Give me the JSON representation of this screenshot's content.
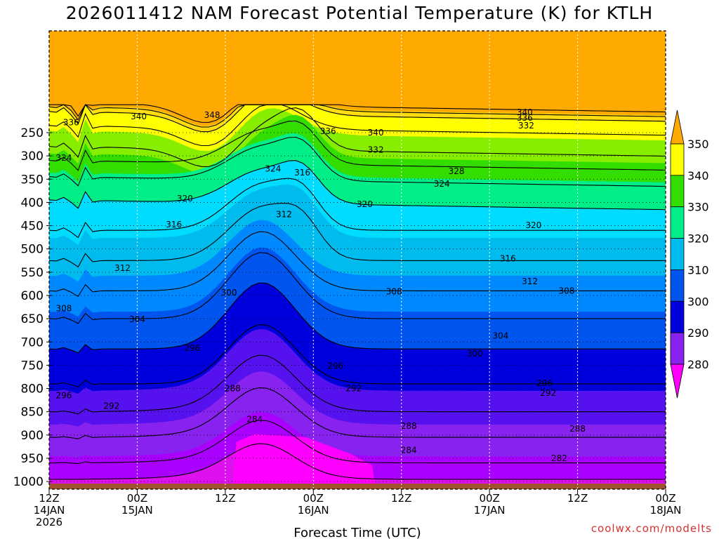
{
  "title": "2026011412 NAM Forecast Potential Temperature (K) for KTLH",
  "credit": "coolwx.com/modelts",
  "colors": {
    "band_lt280": "#ff00ff",
    "band_280": "#dd11ee",
    "band_285": "#aa00ff",
    "band_290": "#8822ee",
    "band_295": "#5511ee",
    "band_300": "#0000dd",
    "band_305": "#0055ee",
    "band_310": "#0088ff",
    "band_315": "#00bbee",
    "band_320": "#00dcff",
    "band_325": "#00ee88",
    "band_330": "#33dd00",
    "band_335": "#88ee00",
    "band_340": "#ffff00",
    "band_345": "#ffdd11",
    "band_350": "#ffaa00",
    "ground": "#a0522d"
  },
  "chart_data": {
    "type": "heatmap",
    "title": "2026011412 NAM Forecast Potential Temperature (K) for KTLH",
    "xlabel": "Forecast Time (UTC)",
    "ylabel": "",
    "x_ticks": [
      {
        "line1": "12Z",
        "line2": "14JAN",
        "line3": "2026"
      },
      {
        "line1": "00Z",
        "line2": "15JAN",
        "line3": ""
      },
      {
        "line1": "12Z",
        "line2": "",
        "line3": ""
      },
      {
        "line1": "00Z",
        "line2": "16JAN",
        "line3": ""
      },
      {
        "line1": "12Z",
        "line2": "",
        "line3": ""
      },
      {
        "line1": "00Z",
        "line2": "17JAN",
        "line3": ""
      },
      {
        "line1": "12Z",
        "line2": "",
        "line3": ""
      },
      {
        "line1": "00Z",
        "line2": "18JAN",
        "line3": ""
      }
    ],
    "x_hours": [
      0,
      12,
      24,
      36,
      48,
      60,
      72,
      84
    ],
    "y_ticks": [
      "250",
      "300",
      "350",
      "400",
      "450",
      "500",
      "550",
      "600",
      "650",
      "700",
      "750",
      "800",
      "850",
      "900",
      "950",
      "1000"
    ],
    "y_values": [
      250,
      300,
      350,
      400,
      450,
      500,
      550,
      600,
      650,
      700,
      750,
      800,
      850,
      900,
      950,
      1000
    ],
    "pressure_range": [
      200,
      1013
    ],
    "colorbar": {
      "labels": [
        "280",
        "290",
        "300",
        "310",
        "320",
        "330",
        "340",
        "350"
      ],
      "values": [
        280,
        290,
        300,
        310,
        320,
        330,
        340,
        350
      ]
    },
    "contour_levels": [
      280,
      284,
      288,
      292,
      296,
      300,
      304,
      308,
      312,
      316,
      320,
      324,
      328,
      332,
      336,
      340,
      344,
      348
    ],
    "contour_labels": [
      {
        "text": "348",
        "h": 22.2,
        "p": 212
      },
      {
        "text": "340",
        "h": 12.2,
        "p": 215
      },
      {
        "text": "336",
        "h": 3.0,
        "p": 228
      },
      {
        "text": "324",
        "h": 2.0,
        "p": 304
      },
      {
        "text": "340",
        "h": 64.8,
        "p": 206
      },
      {
        "text": "336",
        "h": 64.8,
        "p": 218
      },
      {
        "text": "332",
        "h": 65.0,
        "p": 235
      },
      {
        "text": "336",
        "h": 38.0,
        "p": 247
      },
      {
        "text": "340",
        "h": 44.5,
        "p": 250
      },
      {
        "text": "332",
        "h": 44.5,
        "p": 287
      },
      {
        "text": "328",
        "h": 55.5,
        "p": 333
      },
      {
        "text": "324",
        "h": 30.5,
        "p": 328
      },
      {
        "text": "316",
        "h": 34.5,
        "p": 336
      },
      {
        "text": "324",
        "h": 53.5,
        "p": 360
      },
      {
        "text": "320",
        "h": 18.5,
        "p": 392
      },
      {
        "text": "320",
        "h": 43.0,
        "p": 404
      },
      {
        "text": "312",
        "h": 32.0,
        "p": 426
      },
      {
        "text": "316",
        "h": 17.0,
        "p": 448
      },
      {
        "text": "320",
        "h": 66.0,
        "p": 449
      },
      {
        "text": "316",
        "h": 62.5,
        "p": 521
      },
      {
        "text": "312",
        "h": 10.0,
        "p": 541
      },
      {
        "text": "312",
        "h": 65.5,
        "p": 570
      },
      {
        "text": "308",
        "h": 47.0,
        "p": 592
      },
      {
        "text": "308",
        "h": 70.5,
        "p": 590
      },
      {
        "text": "300",
        "h": 24.5,
        "p": 594
      },
      {
        "text": "308",
        "h": 2.0,
        "p": 628
      },
      {
        "text": "304",
        "h": 12.0,
        "p": 651
      },
      {
        "text": "304",
        "h": 61.5,
        "p": 687
      },
      {
        "text": "296",
        "h": 19.5,
        "p": 713
      },
      {
        "text": "300",
        "h": 58.0,
        "p": 725
      },
      {
        "text": "296",
        "h": 39.0,
        "p": 752
      },
      {
        "text": "296",
        "h": 67.5,
        "p": 789
      },
      {
        "text": "288",
        "h": 25.0,
        "p": 800
      },
      {
        "text": "292",
        "h": 41.5,
        "p": 800
      },
      {
        "text": "292",
        "h": 68.0,
        "p": 810
      },
      {
        "text": "296",
        "h": 2.0,
        "p": 815
      },
      {
        "text": "292",
        "h": 8.5,
        "p": 838
      },
      {
        "text": "284",
        "h": 28.0,
        "p": 866
      },
      {
        "text": "288",
        "h": 49.0,
        "p": 881
      },
      {
        "text": "288",
        "h": 72.0,
        "p": 887
      },
      {
        "text": "284",
        "h": 49.0,
        "p": 933
      },
      {
        "text": "282",
        "h": 69.5,
        "p": 950
      }
    ]
  }
}
